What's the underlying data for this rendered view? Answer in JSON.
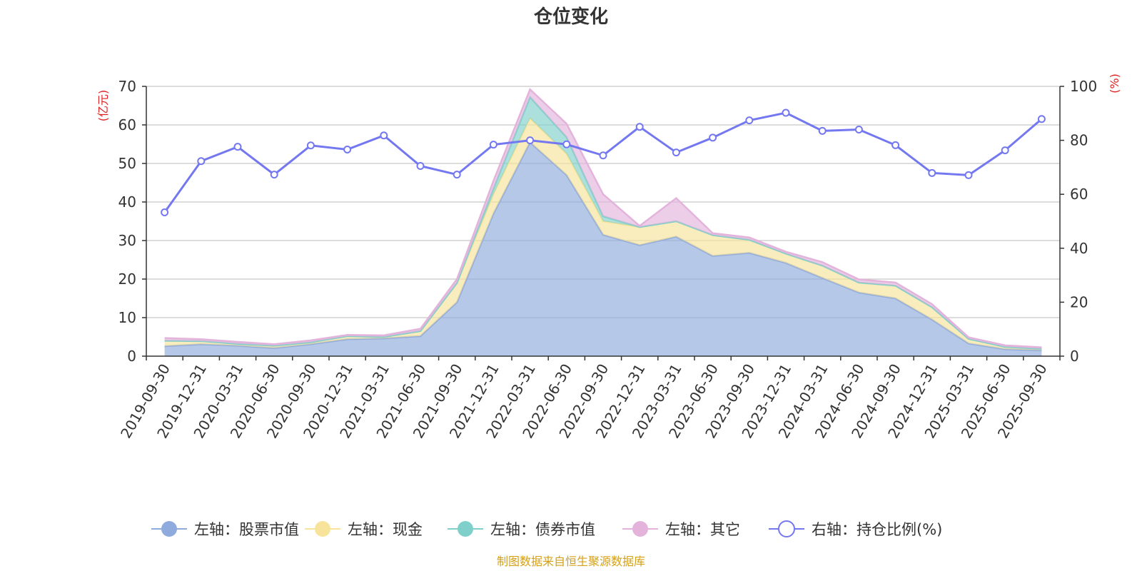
{
  "chart_data": {
    "type": "area",
    "title": "仓位变化",
    "source_note": "制图数据来自恒生聚源数据库",
    "left_axis": {
      "unit_label": "(亿元)",
      "range": [
        0,
        70
      ],
      "ticks": [
        0,
        10,
        20,
        30,
        40,
        50,
        60,
        70
      ]
    },
    "right_axis": {
      "unit_label": "(%)",
      "range": [
        0,
        100
      ],
      "ticks": [
        0,
        20,
        40,
        60,
        80,
        100
      ]
    },
    "categories": [
      "2019-09-30",
      "2019-12-31",
      "2020-03-31",
      "2020-06-30",
      "2020-09-30",
      "2020-12-31",
      "2021-03-31",
      "2021-06-30",
      "2021-09-30",
      "2021-12-31",
      "2022-03-31",
      "2022-06-30",
      "2022-09-30",
      "2022-12-31",
      "2023-03-31",
      "2023-06-30",
      "2023-09-30",
      "2023-12-31",
      "2024-03-31",
      "2024-06-30",
      "2024-09-30",
      "2024-12-31",
      "2025-03-31",
      "2025-06-30",
      "2025-09-30"
    ],
    "series": [
      {
        "name": "左轴：股票市值",
        "axis": "left",
        "stack": true,
        "color": "#8faadc",
        "values": [
          2.6,
          3.1,
          2.7,
          2.1,
          3.1,
          4.4,
          4.6,
          5.2,
          14.0,
          37.0,
          55.5,
          47.0,
          31.5,
          28.8,
          31.0,
          26.0,
          26.8,
          24.2,
          20.3,
          16.5,
          15.0,
          9.5,
          3.3,
          1.8,
          1.5
        ]
      },
      {
        "name": "左轴：现金",
        "axis": "left",
        "stack": true,
        "color": "#f7e49a",
        "values": [
          1.4,
          0.8,
          0.5,
          0.6,
          0.5,
          0.8,
          0.4,
          1.3,
          5.0,
          5.0,
          6.2,
          5.5,
          3.5,
          4.7,
          4.0,
          5.4,
          3.4,
          2.4,
          3.2,
          2.6,
          3.3,
          3.2,
          1.2,
          0.6,
          0.4
        ]
      },
      {
        "name": "左轴：债券市值",
        "axis": "left",
        "stack": true,
        "color": "#7fd0cb",
        "values": [
          0,
          0,
          0,
          0,
          0,
          0,
          0,
          0,
          0,
          1.5,
          5.5,
          4.3,
          1.3,
          0,
          0,
          0,
          0,
          0,
          0,
          0,
          0,
          0,
          0,
          0,
          0
        ]
      },
      {
        "name": "左轴：其它",
        "axis": "left",
        "stack": true,
        "color": "#e3b3dc",
        "values": [
          0.7,
          0.5,
          0.5,
          0.4,
          0.5,
          0.3,
          0.4,
          0.6,
          1.0,
          2.0,
          2.0,
          3.5,
          5.7,
          0.3,
          6.0,
          0.5,
          0.6,
          0.5,
          0.9,
          0.8,
          0.8,
          0.8,
          0.4,
          0.4,
          0.4
        ]
      },
      {
        "name": "右轴：持仓比例(%)",
        "axis": "right",
        "stack": false,
        "color": "#7478f0",
        "values": [
          53.3,
          72.3,
          77.6,
          67.3,
          78.1,
          76.6,
          81.8,
          70.5,
          67.3,
          78.4,
          80.0,
          78.5,
          74.4,
          85.0,
          75.5,
          81.0,
          87.4,
          90.2,
          83.5,
          84.0,
          78.2,
          67.9,
          67.1,
          76.3,
          87.9
        ]
      }
    ]
  }
}
